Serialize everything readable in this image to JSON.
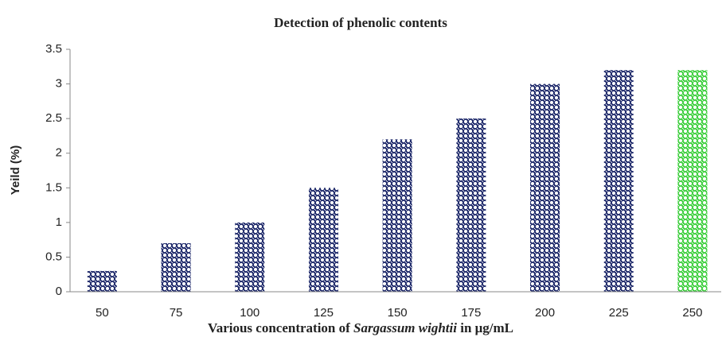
{
  "chart_data": {
    "type": "bar",
    "title": "Detection of phenolic contents",
    "ylabel": "Yeild (%)",
    "xlabel": [
      "Various concentration of ",
      "Sargassum wightii",
      " in μg/mL"
    ],
    "categories": [
      "50",
      "75",
      "100",
      "125",
      "150",
      "175",
      "200",
      "225",
      "250"
    ],
    "values": [
      0.3,
      0.7,
      1.0,
      1.5,
      2.2,
      2.5,
      3.0,
      3.2,
      3.2
    ],
    "colors": [
      "#1f2a6b",
      "#1f2a6b",
      "#1f2a6b",
      "#1f2a6b",
      "#1f2a6b",
      "#1f2a6b",
      "#1f2a6b",
      "#1f2a6b",
      "#3fcf3f"
    ],
    "ylim": [
      0,
      3.5
    ],
    "yticks": [
      0,
      0.5,
      1,
      1.5,
      2,
      2.5,
      3,
      3.5
    ],
    "grid": false
  }
}
